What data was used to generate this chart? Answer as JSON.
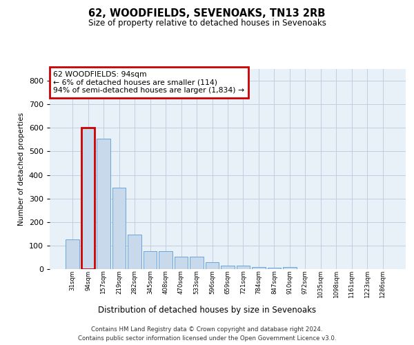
{
  "title": "62, WOODFIELDS, SEVENOAKS, TN13 2RB",
  "subtitle": "Size of property relative to detached houses in Sevenoaks",
  "xlabel": "Distribution of detached houses by size in Sevenoaks",
  "ylabel": "Number of detached properties",
  "categories": [
    "31sqm",
    "94sqm",
    "157sqm",
    "219sqm",
    "282sqm",
    "345sqm",
    "408sqm",
    "470sqm",
    "533sqm",
    "596sqm",
    "659sqm",
    "721sqm",
    "784sqm",
    "847sqm",
    "910sqm",
    "972sqm",
    "1035sqm",
    "1098sqm",
    "1161sqm",
    "1223sqm",
    "1286sqm"
  ],
  "values": [
    125,
    600,
    555,
    347,
    148,
    75,
    75,
    52,
    52,
    30,
    15,
    14,
    10,
    7,
    10,
    0,
    0,
    0,
    0,
    0,
    0
  ],
  "bar_color": "#c9d9ec",
  "bar_edge_color": "#5b9bd5",
  "highlight_index": 1,
  "highlight_edge_color": "#cc0000",
  "annotation_text": "62 WOODFIELDS: 94sqm\n← 6% of detached houses are smaller (114)\n94% of semi-detached houses are larger (1,834) →",
  "annotation_box_color": "#ffffff",
  "annotation_box_edge": "#cc0000",
  "ylim": [
    0,
    850
  ],
  "background_color": "#ffffff",
  "plot_bg_color": "#e8f0f8",
  "grid_color": "#c0cfe0",
  "footer_line1": "Contains HM Land Registry data © Crown copyright and database right 2024.",
  "footer_line2": "Contains public sector information licensed under the Open Government Licence v3.0."
}
